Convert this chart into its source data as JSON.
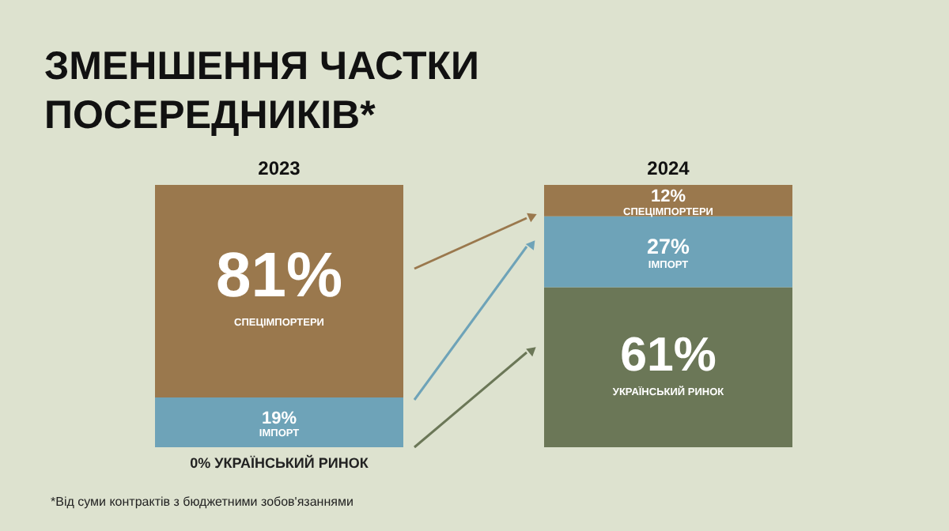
{
  "chart_data": {
    "type": "bar",
    "stacked": true,
    "title": [
      "ЗМЕНШЕННЯ ЧАСТКИ",
      "ПОСЕРЕДНИКІВ*"
    ],
    "categories": [
      "2023",
      "2024"
    ],
    "series": [
      {
        "name": "УКРАЇНСЬКИЙ РИНОК",
        "color": "#6b7757",
        "values": [
          0,
          61
        ],
        "value_labels": [
          "0%",
          "61%"
        ]
      },
      {
        "name": "ІМПОРТ",
        "color": "#6ea3b8",
        "values": [
          19,
          27
        ],
        "value_labels": [
          "19%",
          "27%"
        ]
      },
      {
        "name": "СПЕЦІМПОРТЕРИ",
        "color": "#9a784d",
        "values": [
          81,
          12
        ],
        "value_labels": [
          "81%",
          "12%"
        ]
      }
    ],
    "ylim": [
      0,
      100
    ],
    "tick_labels": "x",
    "grid": false,
    "legend": false,
    "annotations": [
      "*Від суми контрактів з бюджетними зобов'язаннями"
    ]
  }
}
